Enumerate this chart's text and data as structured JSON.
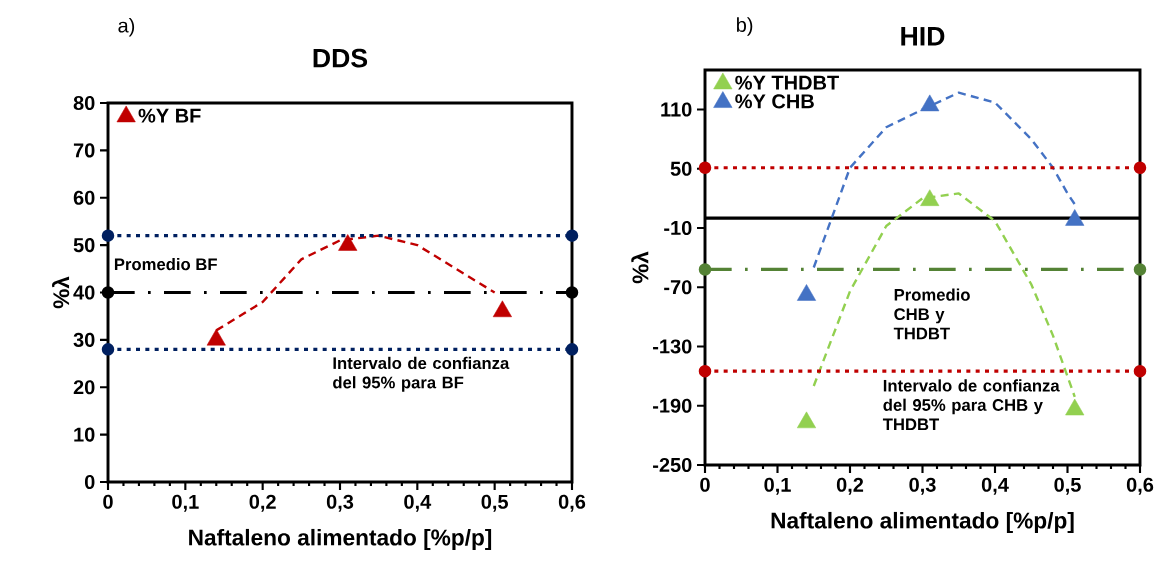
{
  "chart_data": [
    {
      "type": "scatter",
      "title": "DDS",
      "xlabel": "Naftaleno alimentado [%p/p]",
      "ylabel": "%λ",
      "xlim": [
        0,
        0.6
      ],
      "ylim": [
        0,
        80
      ],
      "xticks": [
        0,
        {
          "value": 0.1,
          "label": "0,1"
        },
        {
          "value": 0.2,
          "label": "0,2"
        },
        {
          "value": 0.3,
          "label": "0,3"
        },
        {
          "value": 0.4,
          "label": "0,4"
        },
        {
          "value": 0.5,
          "label": "0,5"
        },
        {
          "value": 0.6,
          "label": "0,6"
        }
      ],
      "yticks": [
        0,
        10,
        20,
        30,
        40,
        50,
        60,
        70,
        80
      ],
      "marker": "triangle",
      "legend": "top left",
      "grid": false,
      "series": [
        {
          "name": "%Y BF",
          "color": "#c00000",
          "x": [
            0.14,
            0.31,
            0.51
          ],
          "values": [
            30,
            50,
            36
          ]
        },
        {
          "type": "line",
          "line_style": "dashed",
          "marker": "none",
          "color": "#c00000",
          "x": [
            0.14,
            0.2,
            0.25,
            0.3,
            0.35,
            0.4,
            0.45,
            0.5
          ],
          "values": [
            32,
            38,
            47,
            51,
            52,
            50,
            45,
            40
          ]
        },
        {
          "type": "line",
          "line_style": "dotted",
          "marker": "circle",
          "color": "#002060",
          "x": [
            0,
            0.6
          ],
          "values": [
            52,
            52
          ]
        },
        {
          "type": "line",
          "line_style": "dashdot",
          "marker": "circle",
          "color": "#000000",
          "x": [
            0,
            0.6
          ],
          "values": [
            40,
            40
          ]
        },
        {
          "type": "line",
          "line_style": "dotted",
          "marker": "circle",
          "color": "#002060",
          "x": [
            0,
            0.6
          ],
          "values": [
            28,
            28
          ]
        }
      ],
      "annotations": [
        "a)",
        "Promedio BF",
        "Intervalo de confianza del 95% para BF"
      ]
    },
    {
      "type": "scatter",
      "title": "HID",
      "xlabel": "Naftaleno alimentado [%p/p]",
      "ylabel": "%λ",
      "xlim": [
        0,
        0.6
      ],
      "ylim": [
        -250,
        150
      ],
      "xticks": [
        0,
        {
          "value": 0.1,
          "label": "0,1"
        },
        {
          "value": 0.2,
          "label": "0,2"
        },
        {
          "value": 0.3,
          "label": "0,3"
        },
        {
          "value": 0.4,
          "label": "0,4"
        },
        {
          "value": 0.5,
          "label": "0,5"
        },
        {
          "value": 0.6,
          "label": "0,6"
        }
      ],
      "yticks": [
        -250,
        -190,
        -130,
        -70,
        -10,
        50,
        110
      ],
      "marker": "triangle",
      "legend": "top left",
      "grid": false,
      "series": [
        {
          "name": "%Y THDBT",
          "color": "#92d050",
          "x": [
            0.14,
            0.31,
            0.51
          ],
          "values": [
            -207,
            18,
            -194
          ]
        },
        {
          "name": "%Y CHB",
          "color": "#4472c4",
          "x": [
            0.14,
            0.31,
            0.51
          ],
          "values": [
            -78,
            114,
            -2
          ]
        },
        {
          "type": "line",
          "line_style": "dashed",
          "marker": "none",
          "color": "#4472c4",
          "x": [
            0.15,
            0.2,
            0.25,
            0.3,
            0.35,
            0.4,
            0.45,
            0.48,
            0.5,
            0.51
          ],
          "values": [
            -50,
            51,
            92,
            110,
            127,
            117,
            80,
            51,
            25,
            14
          ]
        },
        {
          "type": "line",
          "line_style": "dashed",
          "marker": "none",
          "color": "#92d050",
          "x": [
            0.15,
            0.2,
            0.25,
            0.3,
            0.35,
            0.4,
            0.45,
            0.48,
            0.51
          ],
          "values": [
            -170,
            -74,
            -8,
            20,
            25,
            -3,
            -67,
            -119,
            -181
          ]
        },
        {
          "type": "line",
          "line_style": "dotted",
          "marker": "circle",
          "color": "#c00000",
          "x": [
            0,
            0.6
          ],
          "values": [
            51,
            51
          ]
        },
        {
          "type": "line",
          "line_style": "dashdot",
          "marker": "circle",
          "color": "#548235",
          "x": [
            0,
            0.6
          ],
          "values": [
            -52,
            -52
          ]
        },
        {
          "type": "line",
          "line_style": "dotted",
          "marker": "circle",
          "color": "#c00000",
          "x": [
            0,
            0.6
          ],
          "values": [
            -155,
            -155
          ]
        }
      ],
      "ref_lines": [
        {
          "axis": "y",
          "value": 0,
          "color": "#000000",
          "line_style": "solid"
        }
      ],
      "annotations": [
        "b)",
        "Promedio CHB y THDBT",
        "Intervalo de confianza del 95% para CHB y THDBT"
      ]
    }
  ]
}
